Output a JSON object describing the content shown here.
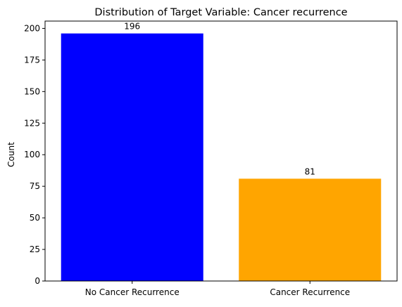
{
  "chart_data": {
    "type": "bar",
    "title": "Distribution of Target Variable: Cancer recurrence",
    "xlabel": "",
    "ylabel": "Count",
    "categories": [
      "No Cancer Recurrence",
      "Cancer Recurrence"
    ],
    "values": [
      196,
      81
    ],
    "bar_colors": [
      "#0000ff",
      "#ffa500"
    ],
    "data_labels": [
      "196",
      "81"
    ],
    "ylim": [
      0,
      205.8
    ],
    "yticks": [
      0,
      25,
      50,
      75,
      100,
      125,
      150,
      175,
      200
    ],
    "grid": false,
    "legend": "none"
  }
}
